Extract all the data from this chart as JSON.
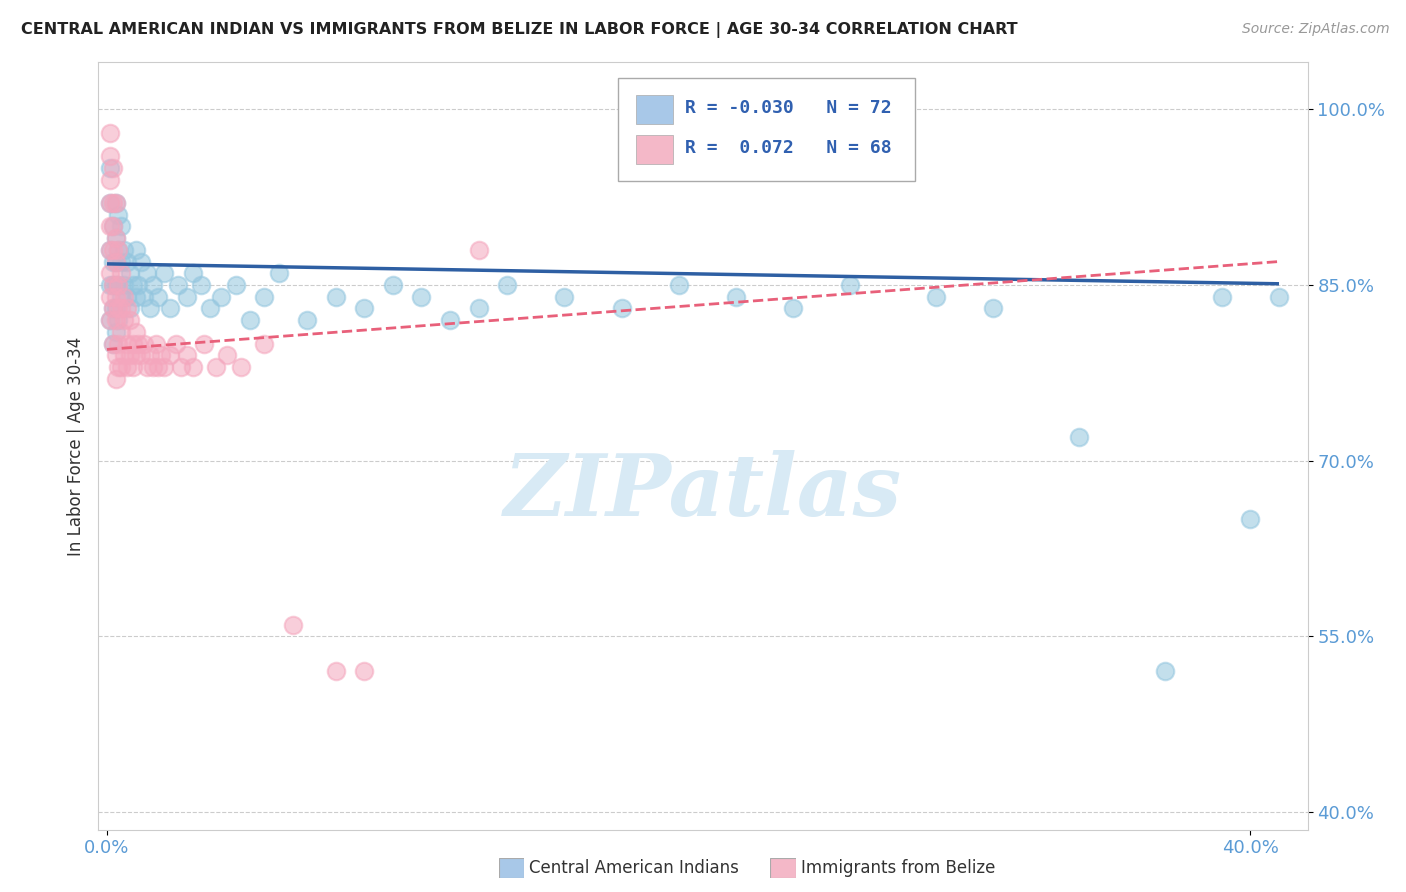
{
  "title": "CENTRAL AMERICAN INDIAN VS IMMIGRANTS FROM BELIZE IN LABOR FORCE | AGE 30-34 CORRELATION CHART",
  "source": "Source: ZipAtlas.com",
  "ylabel": "In Labor Force | Age 30-34",
  "xlim": [
    -0.003,
    0.42
  ],
  "ylim": [
    0.385,
    1.04
  ],
  "xtick_left": 0.0,
  "xtick_right": 0.4,
  "xtick_left_label": "0.0%",
  "xtick_right_label": "40.0%",
  "yticks": [
    0.4,
    0.55,
    0.7,
    0.85,
    1.0
  ],
  "yticklabels": [
    "40.0%",
    "55.0%",
    "70.0%",
    "85.0%",
    "100.0%"
  ],
  "blue_R": -0.03,
  "blue_N": 72,
  "pink_R": 0.072,
  "pink_N": 68,
  "blue_dot_color": "#92C5DE",
  "pink_dot_color": "#F4A6BD",
  "blue_line_color": "#2E5FA3",
  "pink_line_color": "#E8607A",
  "blue_legend_color": "#A8C8E8",
  "pink_legend_color": "#F4B8C8",
  "watermark_color": "#D8EAF5",
  "watermark_text": "ZIPatlas",
  "legend_label_blue": "Central American Indians",
  "legend_label_pink": "Immigrants from Belize",
  "blue_scatter_x": [
    0.001,
    0.001,
    0.001,
    0.001,
    0.001,
    0.002,
    0.002,
    0.002,
    0.002,
    0.002,
    0.003,
    0.003,
    0.003,
    0.003,
    0.003,
    0.003,
    0.004,
    0.004,
    0.004,
    0.004,
    0.005,
    0.005,
    0.005,
    0.006,
    0.006,
    0.007,
    0.007,
    0.008,
    0.008,
    0.009,
    0.01,
    0.01,
    0.011,
    0.012,
    0.013,
    0.014,
    0.015,
    0.016,
    0.018,
    0.02,
    0.022,
    0.025,
    0.028,
    0.03,
    0.033,
    0.036,
    0.04,
    0.045,
    0.05,
    0.055,
    0.06,
    0.07,
    0.08,
    0.09,
    0.1,
    0.11,
    0.12,
    0.13,
    0.14,
    0.16,
    0.18,
    0.2,
    0.22,
    0.24,
    0.26,
    0.29,
    0.31,
    0.34,
    0.37,
    0.39,
    0.4,
    0.41
  ],
  "blue_scatter_y": [
    0.95,
    0.92,
    0.88,
    0.85,
    0.82,
    0.9,
    0.87,
    0.85,
    0.83,
    0.8,
    0.92,
    0.89,
    0.87,
    0.85,
    0.83,
    0.81,
    0.91,
    0.88,
    0.85,
    0.82,
    0.9,
    0.87,
    0.84,
    0.88,
    0.85,
    0.87,
    0.84,
    0.86,
    0.83,
    0.85,
    0.88,
    0.84,
    0.85,
    0.87,
    0.84,
    0.86,
    0.83,
    0.85,
    0.84,
    0.86,
    0.83,
    0.85,
    0.84,
    0.86,
    0.85,
    0.83,
    0.84,
    0.85,
    0.82,
    0.84,
    0.86,
    0.82,
    0.84,
    0.83,
    0.85,
    0.84,
    0.82,
    0.83,
    0.85,
    0.84,
    0.83,
    0.85,
    0.84,
    0.83,
    0.85,
    0.84,
    0.83,
    0.72,
    0.52,
    0.84,
    0.65,
    0.84
  ],
  "pink_scatter_x": [
    0.001,
    0.001,
    0.001,
    0.001,
    0.001,
    0.001,
    0.001,
    0.001,
    0.001,
    0.002,
    0.002,
    0.002,
    0.002,
    0.002,
    0.002,
    0.002,
    0.003,
    0.003,
    0.003,
    0.003,
    0.003,
    0.003,
    0.003,
    0.004,
    0.004,
    0.004,
    0.004,
    0.004,
    0.005,
    0.005,
    0.005,
    0.005,
    0.006,
    0.006,
    0.006,
    0.007,
    0.007,
    0.007,
    0.008,
    0.008,
    0.009,
    0.009,
    0.01,
    0.01,
    0.011,
    0.012,
    0.013,
    0.014,
    0.015,
    0.016,
    0.017,
    0.018,
    0.019,
    0.02,
    0.022,
    0.024,
    0.026,
    0.028,
    0.03,
    0.034,
    0.038,
    0.042,
    0.047,
    0.055,
    0.065,
    0.08,
    0.09,
    0.13
  ],
  "pink_scatter_y": [
    0.98,
    0.96,
    0.94,
    0.92,
    0.9,
    0.88,
    0.86,
    0.84,
    0.82,
    0.95,
    0.92,
    0.9,
    0.88,
    0.85,
    0.83,
    0.8,
    0.92,
    0.89,
    0.87,
    0.84,
    0.82,
    0.79,
    0.77,
    0.88,
    0.85,
    0.83,
    0.8,
    0.78,
    0.86,
    0.83,
    0.81,
    0.78,
    0.84,
    0.82,
    0.79,
    0.83,
    0.8,
    0.78,
    0.82,
    0.79,
    0.8,
    0.78,
    0.81,
    0.79,
    0.8,
    0.79,
    0.8,
    0.78,
    0.79,
    0.78,
    0.8,
    0.78,
    0.79,
    0.78,
    0.79,
    0.8,
    0.78,
    0.79,
    0.78,
    0.8,
    0.78,
    0.79,
    0.78,
    0.8,
    0.56,
    0.52,
    0.52,
    0.88
  ],
  "blue_line_x0": 0.0,
  "blue_line_x1": 0.41,
  "blue_line_y0": 0.868,
  "blue_line_y1": 0.851,
  "pink_line_x0": 0.0,
  "pink_line_x1": 0.41,
  "pink_line_y0": 0.795,
  "pink_line_y1": 0.87
}
